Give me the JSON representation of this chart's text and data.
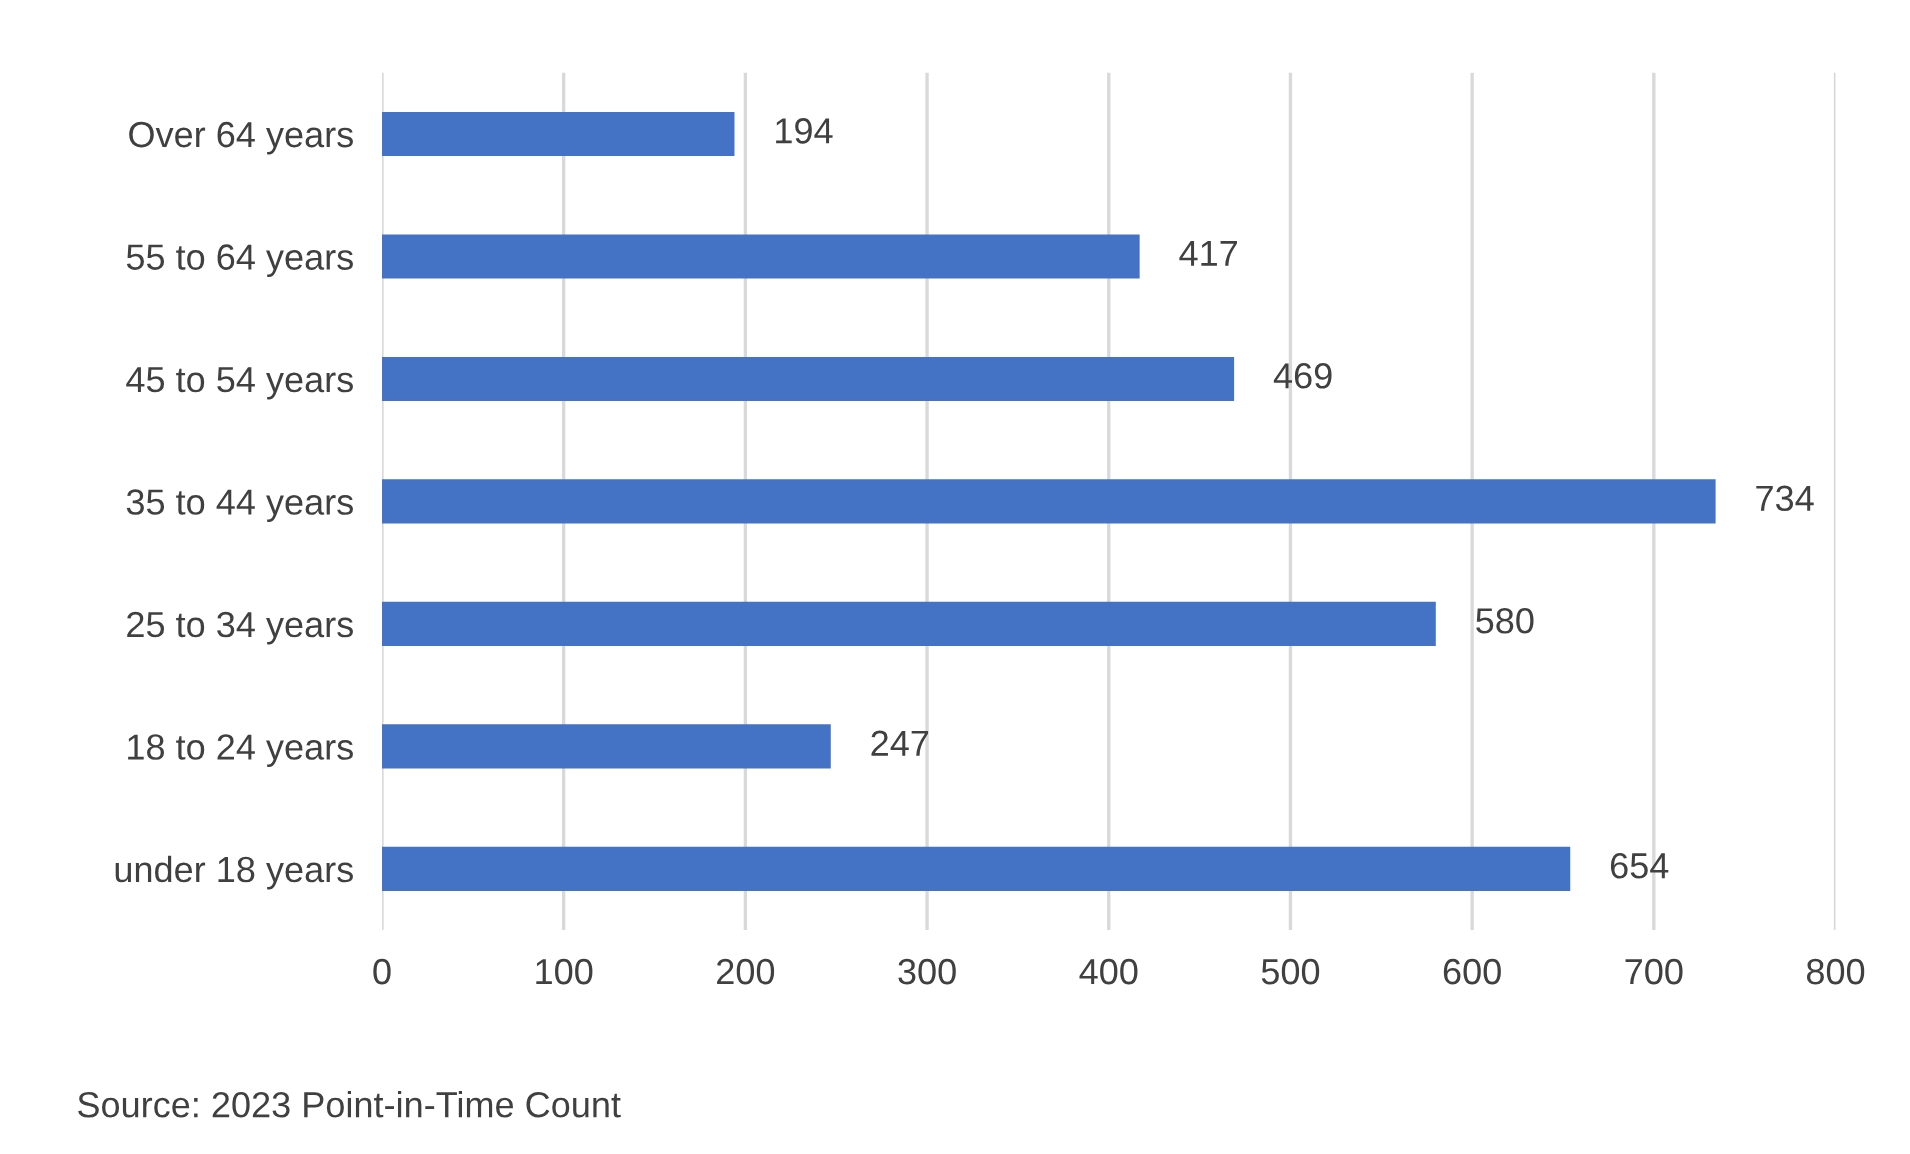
{
  "chart_data": {
    "type": "bar",
    "orientation": "horizontal",
    "categories": [
      "Over 64 years",
      "55 to 64 years",
      "45 to 54 years",
      "35 to 44 years",
      "25 to 34 years",
      "18 to 24 years",
      "under 18 years"
    ],
    "values": [
      194,
      417,
      469,
      734,
      580,
      247,
      654
    ],
    "color": "#4472c4",
    "xlim": [
      0,
      800
    ],
    "xticks": [
      0,
      100,
      200,
      300,
      400,
      500,
      600,
      700,
      800
    ],
    "grid": "x",
    "data_labels": true,
    "annotations": [
      "Source: 2023 Point-in-Time Count"
    ]
  }
}
